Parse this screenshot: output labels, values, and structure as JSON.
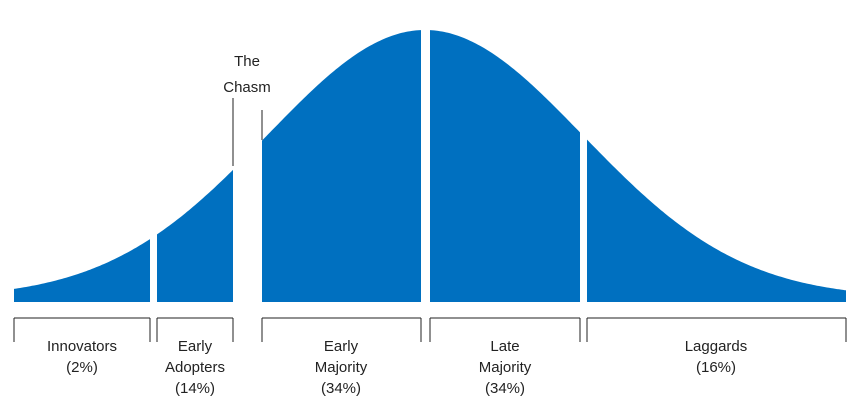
{
  "chasm": {
    "lines": [
      "The",
      "Chasm"
    ]
  },
  "segments": [
    {
      "lines": [
        "Innovators",
        "(2%)"
      ]
    },
    {
      "lines": [
        "Early",
        "Adopters",
        "(14%)"
      ]
    },
    {
      "lines": [
        "Early",
        "Majority",
        "(34%)"
      ]
    },
    {
      "lines": [
        "Late",
        "Majority",
        "(34%)"
      ]
    },
    {
      "lines": [
        "Laggards",
        "(16%)"
      ]
    }
  ]
}
